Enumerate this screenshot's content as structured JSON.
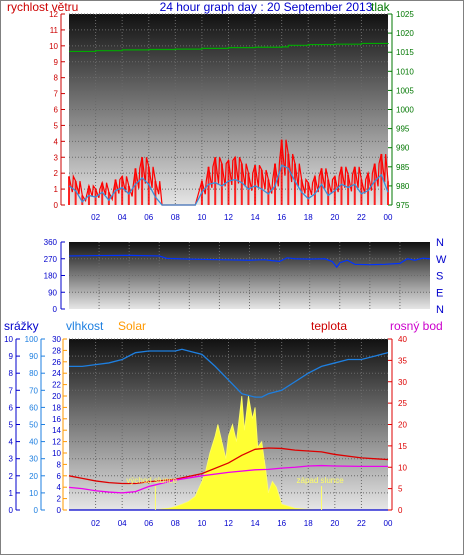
{
  "header": {
    "left": "rychlost větru",
    "center": "24 hour graph day : 20 September 2013",
    "right": "tlak"
  },
  "x_ticks": [
    "02",
    "04",
    "06",
    "08",
    "10",
    "12",
    "14",
    "16",
    "18",
    "20",
    "22",
    "00"
  ],
  "compass": [
    "N",
    "W",
    "S",
    "E",
    "N"
  ],
  "labels": {
    "srazky": "srážky",
    "vlhkost": "vlhkost",
    "solar": "Solar",
    "teplota": "teplota",
    "rosny": "rosný bod",
    "sunrise": "východ slunce",
    "sunset": "západ slunce"
  },
  "colors": {
    "title": "#0000cc",
    "wind": "#cc0000",
    "pressure": "#007700",
    "wind_gust": "#ff0000",
    "wind_avg": "#3a8fd8",
    "direction": "#0033ff",
    "humidity": "#1e7fe0",
    "solar": "#ffff33",
    "temp": "#dd0000",
    "dew": "#ee00ee",
    "rain": "#0000cc",
    "solar_label": "#ff9900"
  },
  "chart_data": [
    {
      "type": "line",
      "title": "24 hour graph day : 20 September 2013",
      "x_unit": "hour",
      "x_ticks": [
        "02",
        "04",
        "06",
        "08",
        "10",
        "12",
        "14",
        "16",
        "18",
        "20",
        "22",
        "00"
      ],
      "left_axis": {
        "label": "rychlost větru",
        "ylim": [
          0,
          12
        ],
        "ticks": [
          0,
          1,
          2,
          3,
          4,
          5,
          6,
          7,
          8,
          9,
          10,
          11,
          12
        ]
      },
      "right_axis": {
        "label": "tlak",
        "ylim": [
          975,
          1025
        ],
        "ticks": [
          975,
          980,
          985,
          990,
          995,
          1000,
          1005,
          1010,
          1015,
          1020,
          1025
        ]
      },
      "series": [
        {
          "axis": "left",
          "x": [
            0,
            0.5,
            1,
            1.5,
            2,
            2.5,
            3,
            3.5,
            4,
            4.5,
            5,
            5.5,
            6,
            6.5,
            7,
            7.5,
            8,
            8.5,
            9,
            9.5,
            10,
            10.5,
            11,
            11.5,
            12,
            12.5,
            13,
            13.5,
            14,
            14.5,
            15,
            15.5,
            16,
            16.5,
            17,
            17.5,
            18,
            18.5,
            19,
            19.5,
            20,
            20.5,
            21,
            21.5,
            22,
            22.5,
            23,
            23.5,
            24
          ],
          "values": [
            1.8,
            1.5,
            0.6,
            1.2,
            1.0,
            1.4,
            0.8,
            1.6,
            1.8,
            1.2,
            2.3,
            3.0,
            2.4,
            1.5,
            0,
            0,
            0,
            0,
            0,
            0,
            1.5,
            2.4,
            3.0,
            2.6,
            2.8,
            3.0,
            2.6,
            2.0,
            2.5,
            2.2,
            1.6,
            2.6,
            4.1,
            3.2,
            2.6,
            1.6,
            1.4,
            1.8,
            2.3,
            1.6,
            1.8,
            2.4,
            1.9,
            2.4,
            1.6,
            2.0,
            2.6,
            3.2,
            1.5
          ]
        },
        {
          "axis": "left",
          "x": [
            0,
            0.5,
            1,
            1.5,
            2,
            2.5,
            3,
            3.5,
            4,
            4.5,
            5,
            5.5,
            6,
            6.5,
            7,
            7.5,
            8,
            8.5,
            9,
            9.5,
            10,
            10.5,
            11,
            11.5,
            12,
            12.5,
            13,
            13.5,
            14,
            14.5,
            15,
            15.5,
            16,
            16.5,
            17,
            17.5,
            18,
            18.5,
            19,
            19.5,
            20,
            20.5,
            21,
            21.5,
            22,
            22.5,
            23,
            23.5,
            24
          ],
          "values": [
            1.2,
            0.9,
            0.2,
            0.6,
            0.5,
            0.8,
            0.3,
            0.9,
            1.1,
            0.7,
            1.3,
            1.7,
            1.3,
            0.5,
            0,
            0,
            0,
            0,
            0,
            0,
            0.8,
            1.3,
            1.4,
            1.2,
            1.5,
            1.6,
            1.4,
            1.0,
            1.2,
            1.0,
            0.7,
            1.2,
            2.5,
            2.3,
            1.5,
            0.8,
            0.4,
            0.7,
            1.3,
            0.6,
            0.9,
            1.3,
            1.1,
            1.3,
            0.7,
            0.9,
            1.5,
            1.9,
            0.8
          ]
        },
        {
          "axis": "right",
          "x": [
            0,
            2,
            4,
            6,
            8,
            10,
            12,
            14,
            16,
            16.5,
            18,
            20,
            22,
            24
          ],
          "values": [
            1015.2,
            1015.4,
            1015.6,
            1015.7,
            1015.8,
            1016.0,
            1016.2,
            1016.3,
            1016.4,
            1016.8,
            1017.0,
            1017.1,
            1017.3,
            1017.4
          ]
        }
      ]
    },
    {
      "type": "line",
      "x_ticks": [
        "02",
        "04",
        "06",
        "08",
        "10",
        "12",
        "14",
        "16",
        "18",
        "20",
        "22",
        "00"
      ],
      "ylim": [
        0,
        360
      ],
      "y_ticks": [
        0,
        90,
        180,
        270,
        360
      ],
      "compass_labels": [
        "N",
        "W",
        "S",
        "E",
        "N"
      ],
      "series": [
        {
          "x": [
            0,
            2,
            4,
            6,
            6.5,
            8,
            10,
            12,
            13,
            13.5,
            14,
            14.5,
            15,
            16,
            17,
            17.5,
            17.8,
            18,
            18.5,
            19,
            20,
            21,
            22,
            22.5,
            23,
            23.5,
            24
          ],
          "values": [
            285,
            287,
            288,
            285,
            272,
            268,
            265,
            262,
            265,
            260,
            256,
            275,
            270,
            268,
            270,
            255,
            225,
            248,
            262,
            240,
            238,
            240,
            245,
            270,
            262,
            273,
            270
          ]
        }
      ]
    },
    {
      "type": "area",
      "x_ticks": [
        "02",
        "04",
        "06",
        "08",
        "10",
        "12",
        "14",
        "16",
        "18",
        "20",
        "22",
        "00"
      ],
      "left_axis_rain": {
        "label": "srážky",
        "ylim": [
          0,
          10
        ],
        "ticks": [
          0,
          1,
          2,
          3,
          4,
          5,
          6,
          7,
          8,
          9,
          10
        ]
      },
      "left_axis_humidity": {
        "label": "vlhkost",
        "ylim": [
          0,
          100
        ],
        "ticks": [
          0,
          10,
          20,
          30,
          40,
          50,
          60,
          70,
          80,
          90,
          100
        ]
      },
      "solar_axis": {
        "label": "Solar",
        "ylim": [
          0,
          30
        ],
        "ticks": [
          0,
          2,
          4,
          6,
          8,
          10,
          12,
          14,
          16,
          18,
          20,
          22,
          24,
          26,
          28,
          30
        ]
      },
      "right_axis": {
        "label": "teplota",
        "ylim": [
          0,
          40
        ],
        "ticks": [
          0,
          5,
          10,
          15,
          20,
          25,
          30,
          35,
          40
        ]
      },
      "annotations": [
        {
          "text": "východ slunce",
          "x": 6.5
        },
        {
          "text": "západ slunce",
          "x": 19.0
        }
      ],
      "series": [
        {
          "axis": "humidity",
          "x": [
            0,
            1,
            2,
            3,
            4,
            5,
            6,
            8,
            8.5,
            9,
            10,
            11,
            12,
            13,
            14,
            14.5,
            15,
            16,
            17,
            18,
            19,
            20,
            21,
            22,
            23,
            24
          ],
          "values": [
            84,
            84,
            85,
            86,
            88,
            92,
            93,
            93,
            94,
            93,
            91,
            84,
            76,
            68,
            66,
            66,
            68,
            70,
            75,
            80,
            84,
            86,
            88,
            88,
            90,
            92
          ]
        },
        {
          "axis": "solar",
          "x": [
            6.5,
            7,
            7.5,
            8,
            8.5,
            9,
            9.5,
            10,
            10.3,
            10.6,
            11,
            11.2,
            11.5,
            11.8,
            12,
            12.3,
            12.6,
            13,
            13.2,
            13.5,
            13.8,
            14,
            14.2,
            14.5,
            14.8,
            15,
            15.3,
            15.6,
            16,
            17,
            18,
            19,
            24
          ],
          "values": [
            0,
            0.2,
            0.3,
            0.6,
            1.0,
            1.5,
            2.4,
            5,
            7,
            10,
            13,
            15,
            12,
            9,
            13,
            15,
            12,
            20,
            14,
            20,
            16,
            18,
            11,
            12,
            7,
            3,
            5,
            4,
            1,
            0.3,
            0.1,
            0,
            0
          ]
        },
        {
          "axis": "temp",
          "x": [
            0,
            1,
            2,
            3,
            4,
            5,
            6,
            8,
            10,
            12,
            13,
            14,
            15,
            16,
            17,
            18,
            19,
            20,
            22,
            24
          ],
          "values": [
            8.0,
            7.4,
            6.8,
            6.4,
            6.2,
            6.2,
            6.6,
            7.2,
            8.5,
            11.0,
            12.8,
            14.2,
            14.5,
            14.4,
            14.0,
            13.8,
            13.6,
            13.0,
            12.2,
            11.8
          ]
        },
        {
          "axis": "temp",
          "x": [
            0,
            1,
            2,
            3,
            4,
            5,
            6,
            8,
            10,
            12,
            14,
            15,
            16,
            17,
            18,
            19,
            20,
            22,
            24
          ],
          "values": [
            5.3,
            5.0,
            4.5,
            4.2,
            4.0,
            4.3,
            5.5,
            7.0,
            8.0,
            8.8,
            9.4,
            9.5,
            9.8,
            10.0,
            10.3,
            10.4,
            10.3,
            10.2,
            10.2
          ]
        },
        {
          "axis": "rain",
          "x": [
            0,
            24
          ],
          "values": [
            0,
            0
          ]
        }
      ]
    }
  ]
}
